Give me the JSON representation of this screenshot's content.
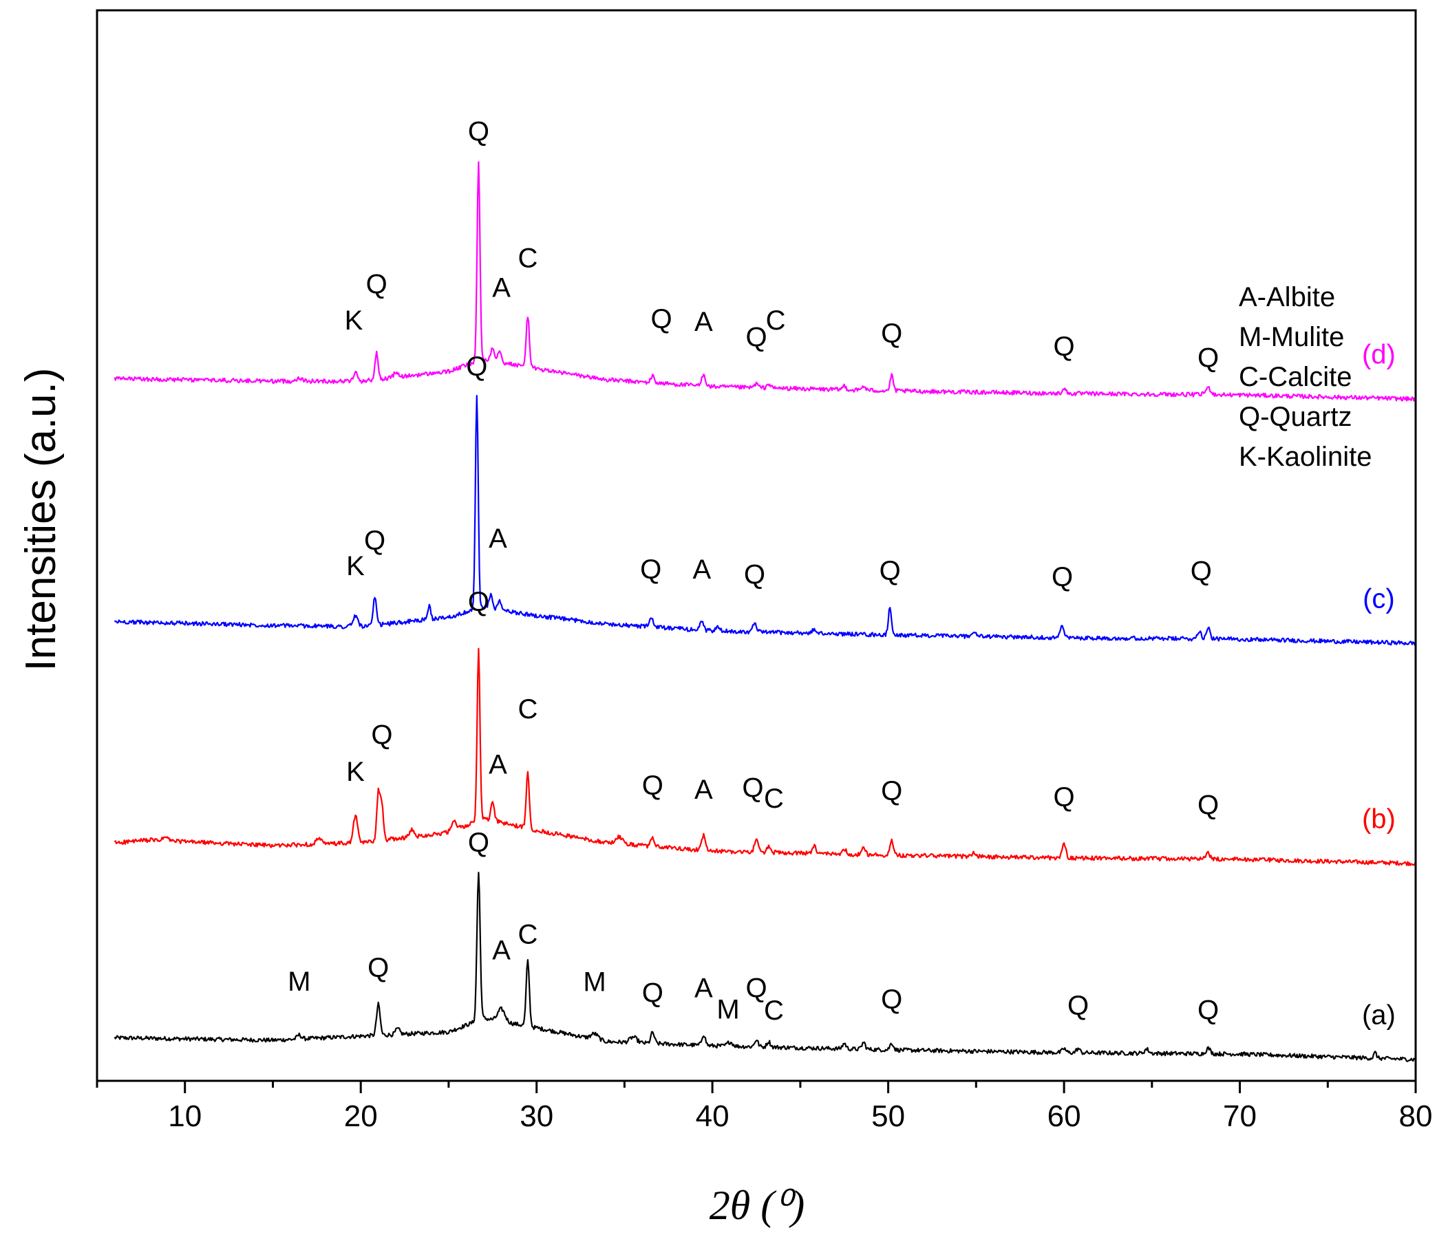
{
  "chart_data": {
    "type": "line",
    "title": "",
    "xlabel": "2θ (⁰)",
    "ylabel": "Intensities (a.u.)",
    "xlim": [
      5,
      80
    ],
    "x_ticks": [
      "10",
      "20",
      "30",
      "40",
      "50",
      "60",
      "70",
      "80"
    ],
    "legend": {
      "placement": "top-right",
      "items": [
        "A-Albite",
        "M-Mulite",
        "C-Calcite",
        "Q-Quartz",
        "K-Kaolinite"
      ]
    },
    "series": [
      {
        "name": "(a)",
        "color": "#000000",
        "offset": 0,
        "baseline": [
          [
            5,
            32
          ],
          [
            15,
            28
          ],
          [
            25,
            40
          ],
          [
            27,
            60
          ],
          [
            30,
            46
          ],
          [
            34,
            26
          ],
          [
            40,
            20
          ],
          [
            50,
            14
          ],
          [
            60,
            10
          ],
          [
            70,
            8
          ],
          [
            80,
            0
          ]
        ],
        "peaks": [
          [
            16.5,
            6,
            0.12
          ],
          [
            21.0,
            45,
            0.1
          ],
          [
            22.1,
            8,
            0.12
          ],
          [
            26.7,
            215,
            0.09
          ],
          [
            28.0,
            18,
            0.2
          ],
          [
            29.5,
            95,
            0.09
          ],
          [
            33.3,
            8,
            0.2
          ],
          [
            35.5,
            8,
            0.2
          ],
          [
            36.6,
            16,
            0.1
          ],
          [
            39.5,
            16,
            0.1
          ],
          [
            41.0,
            6,
            0.15
          ],
          [
            42.5,
            10,
            0.1
          ],
          [
            43.2,
            8,
            0.1
          ],
          [
            47.5,
            8,
            0.1
          ],
          [
            48.6,
            10,
            0.1
          ],
          [
            50.2,
            10,
            0.1
          ],
          [
            60.0,
            6,
            0.1
          ],
          [
            60.8,
            6,
            0.1
          ],
          [
            64.7,
            6,
            0.12
          ],
          [
            68.2,
            8,
            0.12
          ],
          [
            77.7,
            8,
            0.08
          ]
        ],
        "peak_labels": [
          {
            "text": "M",
            "x": 16.5,
            "y": 70
          },
          {
            "text": "Q",
            "x": 21.0,
            "y": 85
          },
          {
            "text": "Q",
            "x": 26.7,
            "y": 245
          },
          {
            "text": "A",
            "x": 28.0,
            "y": 90
          },
          {
            "text": "C",
            "x": 29.5,
            "y": 120
          },
          {
            "text": "M",
            "x": 33.3,
            "y": 70
          },
          {
            "text": "Q",
            "x": 36.6,
            "y": 60
          },
          {
            "text": "A",
            "x": 39.5,
            "y": 70
          },
          {
            "text": "M",
            "x": 40.9,
            "y": 40
          },
          {
            "text": "Q",
            "x": 42.5,
            "y": 72
          },
          {
            "text": "C",
            "x": 43.5,
            "y": 40
          },
          {
            "text": "Q",
            "x": 50.2,
            "y": 60
          },
          {
            "text": "Q",
            "x": 60.8,
            "y": 55
          },
          {
            "text": "Q",
            "x": 68.2,
            "y": 50
          }
        ],
        "tag": "(a)",
        "tag_x": 77.9,
        "tag_y": 50
      },
      {
        "name": "(b)",
        "color": "#ff0000",
        "offset": 285,
        "baseline": [
          [
            5,
            28
          ],
          [
            8,
            34
          ],
          [
            15,
            26
          ],
          [
            20,
            30
          ],
          [
            25,
            45
          ],
          [
            27,
            65
          ],
          [
            30,
            48
          ],
          [
            34,
            30
          ],
          [
            40,
            18
          ],
          [
            50,
            12
          ],
          [
            60,
            8
          ],
          [
            70,
            6
          ],
          [
            80,
            0
          ]
        ],
        "peaks": [
          [
            8.9,
            5,
            0.15
          ],
          [
            17.6,
            8,
            0.15
          ],
          [
            19.7,
            40,
            0.12
          ],
          [
            21.0,
            70,
            0.09
          ],
          [
            21.2,
            50,
            0.09
          ],
          [
            22.9,
            10,
            0.12
          ],
          [
            25.3,
            12,
            0.15
          ],
          [
            26.7,
            250,
            0.08
          ],
          [
            27.5,
            25,
            0.1
          ],
          [
            29.5,
            80,
            0.09
          ],
          [
            34.7,
            10,
            0.2
          ],
          [
            36.6,
            12,
            0.1
          ],
          [
            39.5,
            22,
            0.1
          ],
          [
            42.5,
            20,
            0.1
          ],
          [
            43.2,
            8,
            0.1
          ],
          [
            45.8,
            10,
            0.1
          ],
          [
            47.5,
            8,
            0.1
          ],
          [
            48.6,
            10,
            0.1
          ],
          [
            50.2,
            22,
            0.1
          ],
          [
            54.9,
            5,
            0.12
          ],
          [
            60.0,
            22,
            0.1
          ],
          [
            68.2,
            8,
            0.12
          ]
        ],
        "peak_labels": [
          {
            "text": "K",
            "x": 19.7,
            "y": 90
          },
          {
            "text": "Q",
            "x": 21.2,
            "y": 140
          },
          {
            "text": "Q",
            "x": 26.7,
            "y": 305
          },
          {
            "text": "A",
            "x": 27.8,
            "y": 70
          },
          {
            "text": "C",
            "x": 29.5,
            "y": 160
          },
          {
            "text": "Q",
            "x": 36.6,
            "y": 75
          },
          {
            "text": "A",
            "x": 39.5,
            "y": 75
          },
          {
            "text": "Q",
            "x": 42.3,
            "y": 80
          },
          {
            "text": "C",
            "x": 43.5,
            "y": 65
          },
          {
            "text": "Q",
            "x": 50.2,
            "y": 80
          },
          {
            "text": "Q",
            "x": 60.0,
            "y": 75
          },
          {
            "text": "Q",
            "x": 68.2,
            "y": 65
          }
        ],
        "tag": "(b)",
        "tag_x": 77.9,
        "tag_y": 50
      },
      {
        "name": "(c)",
        "color": "#0000ff",
        "offset": 605,
        "baseline": [
          [
            5,
            32
          ],
          [
            15,
            26
          ],
          [
            20,
            24
          ],
          [
            25,
            38
          ],
          [
            27,
            52
          ],
          [
            30,
            40
          ],
          [
            34,
            28
          ],
          [
            40,
            18
          ],
          [
            50,
            12
          ],
          [
            60,
            8
          ],
          [
            70,
            6
          ],
          [
            80,
            0
          ]
        ],
        "peaks": [
          [
            19.7,
            15,
            0.15
          ],
          [
            20.8,
            40,
            0.09
          ],
          [
            23.9,
            20,
            0.07
          ],
          [
            26.6,
            310,
            0.08
          ],
          [
            27.4,
            20,
            0.1
          ],
          [
            27.9,
            12,
            0.1
          ],
          [
            36.5,
            15,
            0.1
          ],
          [
            39.4,
            14,
            0.1
          ],
          [
            40.3,
            6,
            0.1
          ],
          [
            42.4,
            12,
            0.1
          ],
          [
            45.8,
            6,
            0.1
          ],
          [
            50.1,
            40,
            0.09
          ],
          [
            54.9,
            6,
            0.12
          ],
          [
            59.9,
            18,
            0.1
          ],
          [
            67.7,
            12,
            0.1
          ],
          [
            68.2,
            18,
            0.1
          ]
        ],
        "peak_labels": [
          {
            "text": "K",
            "x": 19.7,
            "y": 75
          },
          {
            "text": "Q",
            "x": 20.8,
            "y": 110
          },
          {
            "text": "Q",
            "x": 26.6,
            "y": 340
          },
          {
            "text": "A",
            "x": 27.8,
            "y": 90
          },
          {
            "text": "Q",
            "x": 36.5,
            "y": 70
          },
          {
            "text": "A",
            "x": 39.4,
            "y": 75
          },
          {
            "text": "Q",
            "x": 42.4,
            "y": 70
          },
          {
            "text": "Q",
            "x": 50.1,
            "y": 80
          },
          {
            "text": "Q",
            "x": 59.9,
            "y": 75
          },
          {
            "text": "Q",
            "x": 67.8,
            "y": 85
          }
        ],
        "tag": "(c)",
        "tag_x": 77.9,
        "tag_y": 50
      },
      {
        "name": "(d)",
        "color": "#ff00ff",
        "offset": 960,
        "baseline": [
          [
            5,
            30
          ],
          [
            15,
            26
          ],
          [
            20,
            26
          ],
          [
            25,
            40
          ],
          [
            27,
            58
          ],
          [
            30,
            44
          ],
          [
            34,
            28
          ],
          [
            40,
            18
          ],
          [
            50,
            12
          ],
          [
            60,
            8
          ],
          [
            70,
            6
          ],
          [
            80,
            0
          ]
        ],
        "peaks": [
          [
            16.5,
            5,
            0.15
          ],
          [
            19.7,
            12,
            0.12
          ],
          [
            20.9,
            38,
            0.09
          ],
          [
            22.0,
            6,
            0.15
          ],
          [
            26.7,
            290,
            0.08
          ],
          [
            27.5,
            20,
            0.1
          ],
          [
            27.9,
            18,
            0.1
          ],
          [
            29.5,
            75,
            0.09
          ],
          [
            36.6,
            10,
            0.1
          ],
          [
            39.5,
            18,
            0.1
          ],
          [
            42.5,
            6,
            0.1
          ],
          [
            43.2,
            6,
            0.1
          ],
          [
            47.5,
            6,
            0.1
          ],
          [
            48.6,
            6,
            0.1
          ],
          [
            50.2,
            22,
            0.09
          ],
          [
            60.0,
            8,
            0.1
          ],
          [
            68.2,
            10,
            0.15
          ]
        ],
        "peak_labels": [
          {
            "text": "K",
            "x": 19.6,
            "y": 75
          },
          {
            "text": "Q",
            "x": 20.9,
            "y": 125
          },
          {
            "text": "Q",
            "x": 26.7,
            "y": 320
          },
          {
            "text": "A",
            "x": 28.0,
            "y": 95
          },
          {
            "text": "C",
            "x": 29.5,
            "y": 145
          },
          {
            "text": "Q",
            "x": 37.1,
            "y": 80
          },
          {
            "text": "A",
            "x": 39.5,
            "y": 80
          },
          {
            "text": "Q",
            "x": 42.5,
            "y": 60
          },
          {
            "text": "C",
            "x": 43.6,
            "y": 85
          },
          {
            "text": "Q",
            "x": 50.2,
            "y": 70
          },
          {
            "text": "Q",
            "x": 60.0,
            "y": 55
          },
          {
            "text": "Q",
            "x": 68.2,
            "y": 40
          }
        ],
        "tag": "(d)",
        "tag_x": 77.9,
        "tag_y": 50
      }
    ]
  }
}
